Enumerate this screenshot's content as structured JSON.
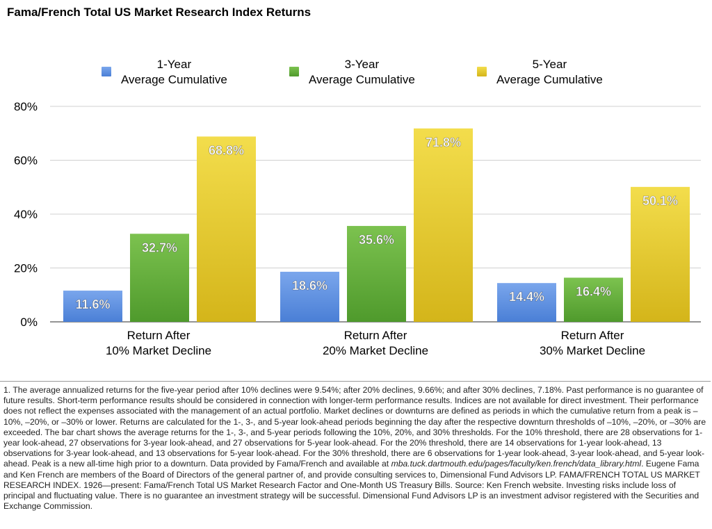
{
  "chart_data": {
    "type": "bar",
    "title": "Fama/French Total US Market Research Index Returns",
    "categories": [
      [
        "Return After",
        "10% Market Decline"
      ],
      [
        "Return After",
        "20% Market Decline"
      ],
      [
        "Return After",
        "30% Market Decline"
      ]
    ],
    "series": [
      {
        "name": [
          "1-Year",
          "Average Cumulative"
        ],
        "values": [
          11.6,
          18.6,
          14.4
        ],
        "labels": [
          "11.6%",
          "18.6%",
          "14.4%"
        ],
        "color": "#4a7fd6",
        "color_light": "#7aa6ec"
      },
      {
        "name": [
          "3-Year",
          "Average Cumulative"
        ],
        "values": [
          32.7,
          35.6,
          16.4
        ],
        "labels": [
          "32.7%",
          "35.6%",
          "16.4%"
        ],
        "color": "#4f9a2c",
        "color_light": "#7cc24f"
      },
      {
        "name": [
          "5-Year",
          "Average Cumulative"
        ],
        "values": [
          68.8,
          71.8,
          50.1
        ],
        "labels": [
          "68.8%",
          "71.8%",
          "50.1%"
        ],
        "color": "#d4b51a",
        "color_light": "#f3dd4c"
      }
    ],
    "ylim": [
      0,
      80
    ],
    "yticks": [
      0,
      20,
      40,
      60,
      80
    ],
    "ytick_labels": [
      "0%",
      "20%",
      "40%",
      "60%",
      "80%"
    ],
    "grid": true,
    "legend_position": "top"
  },
  "footnote": {
    "part1": "1. The average annualized returns for the five-year period after 10% declines were 9.54%; after 20% declines, 9.66%; and after 30% declines, 7.18%. Past performance is no guarantee of future results. Short-term performance results should be considered in connection with longer-term performance results. Indices are not available for direct investment. Their performance does not reflect the expenses associated with the management of an actual portfolio. Market declines or downturns are defined as periods in which the cumulative return from a peak is –10%, –20%, or –30% or lower. Returns are calculated for the 1-, 3-, and 5-year look-ahead periods beginning the day after the respective downturn thresholds of –10%, –20%, or –30% are exceeded. The bar chart shows the average returns for the 1-, 3-, and 5-year periods following the 10%, 20%, and 30% thresholds. For the 10% threshold, there are 28 observations for 1-year look-ahead, 27 observations for 3-year look-ahead, and 27 observations for 5-year look-ahead. For the 20% threshold, there are 14 observations for 1-year look-ahead, 13 observations for 3-year look-ahead, and 13 observations for 5-year look-ahead. For the 30% threshold, there are 6 observations for 1-year look-ahead, 3-year look-ahead, and 5-year look-ahead. Peak is a new all-time high prior to a downturn. Data provided by Fama/French and available at ",
    "link": "mba.tuck.dartmouth.edu/pages/faculty/ken.french/data_library.html",
    "part2": ". Eugene Fama and Ken French are members of the Board of Directors of the general partner of, and provide consulting services to, Dimensional Fund Advisors LP. FAMA/FRENCH TOTAL US MARKET RESEARCH INDEX. 1926—present: Fama/French Total US Market Research Factor and One-Month US Treasury Bills. Source: Ken French website. Investing risks include loss of principal and fluctuating value. There is no guarantee an investment strategy will be successful. Dimensional Fund Advisors LP is an investment advisor registered with the Securities and Exchange Commission."
  }
}
